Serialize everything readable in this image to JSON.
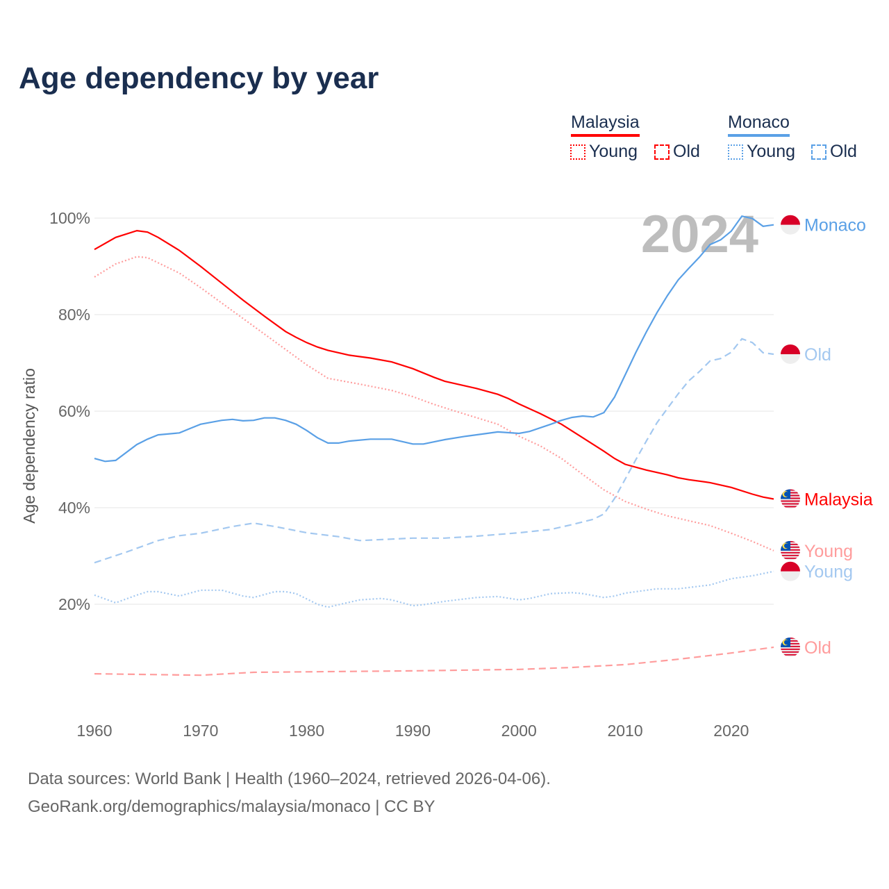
{
  "title": "Age dependency by year",
  "legend": {
    "groups": [
      {
        "name": "Malaysia",
        "color": "#ff0000",
        "items": [
          "Young",
          "Old"
        ]
      },
      {
        "name": "Monaco",
        "color": "#5aa0e6",
        "items": [
          "Young",
          "Old"
        ]
      }
    ]
  },
  "year_label": "2024",
  "sources": {
    "line1": "Data sources: World Bank | Health (1960–2024, retrieved 2026-04-06).",
    "line2": "GeoRank.org/demographics/malaysia/monaco | CC BY"
  },
  "chart_data": {
    "type": "line",
    "title": "Age dependency by year",
    "xlabel": "",
    "ylabel": "Age dependency ratio",
    "xlim": [
      1960,
      2024
    ],
    "ylim": [
      0,
      100
    ],
    "xticks": [
      "1960",
      "1970",
      "1980",
      "1990",
      "2000",
      "2010",
      "2020"
    ],
    "yticks": [
      "20%",
      "40%",
      "60%",
      "80%",
      "100%"
    ],
    "grid": true,
    "legend_position": "top-right",
    "series": [
      {
        "name": "Malaysia",
        "label": "Malaysia",
        "country": "malaysia",
        "style": "solid",
        "color": "#ff0000",
        "points": [
          [
            1960,
            93.5
          ],
          [
            1962,
            96
          ],
          [
            1964,
            97.4
          ],
          [
            1965,
            97.1
          ],
          [
            1966,
            96
          ],
          [
            1968,
            93.3
          ],
          [
            1970,
            90
          ],
          [
            1972,
            86.5
          ],
          [
            1974,
            83
          ],
          [
            1976,
            79.7
          ],
          [
            1978,
            76.5
          ],
          [
            1979,
            75.3
          ],
          [
            1980,
            74.2
          ],
          [
            1981,
            73.3
          ],
          [
            1982,
            72.6
          ],
          [
            1984,
            71.6
          ],
          [
            1986,
            71
          ],
          [
            1988,
            70.2
          ],
          [
            1990,
            68.8
          ],
          [
            1992,
            67
          ],
          [
            1993,
            66.2
          ],
          [
            1996,
            64.7
          ],
          [
            1998,
            63.5
          ],
          [
            1999,
            62.6
          ],
          [
            2000,
            61.5
          ],
          [
            2002,
            59.5
          ],
          [
            2004,
            57.3
          ],
          [
            2006,
            54.5
          ],
          [
            2008,
            51.7
          ],
          [
            2009,
            50.2
          ],
          [
            2010,
            49
          ],
          [
            2012,
            47.8
          ],
          [
            2014,
            46.8
          ],
          [
            2015,
            46.2
          ],
          [
            2016,
            45.8
          ],
          [
            2018,
            45.2
          ],
          [
            2020,
            44.2
          ],
          [
            2022,
            42.8
          ],
          [
            2023,
            42.2
          ],
          [
            2024,
            41.8
          ]
        ]
      },
      {
        "name": "Malaysia Young",
        "label": "Young",
        "country": "malaysia",
        "style": "dotted",
        "color": "#ff9c9c",
        "points": [
          [
            1960,
            87.8
          ],
          [
            1962,
            90.5
          ],
          [
            1964,
            92
          ],
          [
            1965,
            91.8
          ],
          [
            1968,
            88.6
          ],
          [
            1970,
            85.6
          ],
          [
            1975,
            77.6
          ],
          [
            1980,
            69.6
          ],
          [
            1982,
            66.8
          ],
          [
            1985,
            65.6
          ],
          [
            1988,
            64.3
          ],
          [
            1990,
            63
          ],
          [
            1992,
            61.4
          ],
          [
            1994,
            60
          ],
          [
            1998,
            57.3
          ],
          [
            2000,
            54.8
          ],
          [
            2002,
            52.8
          ],
          [
            2004,
            50.2
          ],
          [
            2006,
            46.9
          ],
          [
            2008,
            43.7
          ],
          [
            2010,
            41.3
          ],
          [
            2012,
            39.7
          ],
          [
            2014,
            38.3
          ],
          [
            2016,
            37.3
          ],
          [
            2018,
            36.3
          ],
          [
            2020,
            34.7
          ],
          [
            2022,
            33
          ],
          [
            2024,
            31.1
          ]
        ]
      },
      {
        "name": "Malaysia Old",
        "label": "Old",
        "country": "malaysia",
        "style": "dashed",
        "color": "#ff9c9c",
        "points": [
          [
            1960,
            5.6
          ],
          [
            1970,
            5.3
          ],
          [
            1975,
            5.9
          ],
          [
            1990,
            6.2
          ],
          [
            2000,
            6.5
          ],
          [
            2005,
            6.9
          ],
          [
            2010,
            7.5
          ],
          [
            2015,
            8.6
          ],
          [
            2020,
            9.9
          ],
          [
            2024,
            11.1
          ]
        ]
      },
      {
        "name": "Monaco",
        "label": "Monaco",
        "country": "monaco",
        "style": "solid",
        "color": "#5aa0e6",
        "points": [
          [
            1960,
            50.2
          ],
          [
            1961,
            49.6
          ],
          [
            1962,
            49.8
          ],
          [
            1964,
            53.1
          ],
          [
            1965,
            54.2
          ],
          [
            1966,
            55.1
          ],
          [
            1968,
            55.5
          ],
          [
            1969,
            56.4
          ],
          [
            1970,
            57.3
          ],
          [
            1972,
            58.1
          ],
          [
            1973,
            58.3
          ],
          [
            1974,
            58
          ],
          [
            1975,
            58.1
          ],
          [
            1976,
            58.6
          ],
          [
            1977,
            58.6
          ],
          [
            1978,
            58.1
          ],
          [
            1979,
            57.3
          ],
          [
            1980,
            56
          ],
          [
            1981,
            54.5
          ],
          [
            1982,
            53.4
          ],
          [
            1983,
            53.4
          ],
          [
            1984,
            53.8
          ],
          [
            1986,
            54.2
          ],
          [
            1988,
            54.2
          ],
          [
            1990,
            53.2
          ],
          [
            1991,
            53.2
          ],
          [
            1993,
            54.1
          ],
          [
            1995,
            54.8
          ],
          [
            1997,
            55.4
          ],
          [
            1998,
            55.7
          ],
          [
            2000,
            55.4
          ],
          [
            2001,
            55.8
          ],
          [
            2003,
            57.3
          ],
          [
            2004,
            58.1
          ],
          [
            2005,
            58.7
          ],
          [
            2006,
            59
          ],
          [
            2007,
            58.8
          ],
          [
            2008,
            59.7
          ],
          [
            2009,
            62.9
          ],
          [
            2010,
            67.5
          ],
          [
            2011,
            72.1
          ],
          [
            2012,
            76.4
          ],
          [
            2013,
            80.4
          ],
          [
            2014,
            84
          ],
          [
            2015,
            87.2
          ],
          [
            2016,
            89.6
          ],
          [
            2017,
            91.9
          ],
          [
            2018,
            94.5
          ],
          [
            2019,
            95.5
          ],
          [
            2020,
            97.3
          ],
          [
            2021,
            100.4
          ],
          [
            2022,
            99.9
          ],
          [
            2023,
            98.3
          ],
          [
            2024,
            98.6
          ]
        ]
      },
      {
        "name": "Monaco Old",
        "label": "Old",
        "country": "monaco",
        "style": "dashed",
        "color": "#a3c8f0",
        "points": [
          [
            1960,
            28.6
          ],
          [
            1963,
            30.8
          ],
          [
            1966,
            33.2
          ],
          [
            1968,
            34.2
          ],
          [
            1970,
            34.7
          ],
          [
            1973,
            36.1
          ],
          [
            1975,
            36.8
          ],
          [
            1977,
            36.1
          ],
          [
            1980,
            34.8
          ],
          [
            1983,
            34
          ],
          [
            1985,
            33.2
          ],
          [
            1988,
            33.5
          ],
          [
            1990,
            33.7
          ],
          [
            1993,
            33.7
          ],
          [
            1996,
            34.1
          ],
          [
            2000,
            34.8
          ],
          [
            2003,
            35.5
          ],
          [
            2005,
            36.5
          ],
          [
            2007,
            37.6
          ],
          [
            2008,
            38.7
          ],
          [
            2009,
            41.9
          ],
          [
            2010,
            45.9
          ],
          [
            2011,
            49.9
          ],
          [
            2012,
            53.8
          ],
          [
            2013,
            57.6
          ],
          [
            2014,
            60.6
          ],
          [
            2015,
            63.6
          ],
          [
            2016,
            66.3
          ],
          [
            2017,
            68.2
          ],
          [
            2018,
            70.4
          ],
          [
            2019,
            70.9
          ],
          [
            2020,
            72.2
          ],
          [
            2021,
            75
          ],
          [
            2022,
            74.2
          ],
          [
            2023,
            72.1
          ],
          [
            2024,
            71.8
          ]
        ]
      },
      {
        "name": "Monaco Young",
        "label": "Young",
        "country": "monaco",
        "style": "dotted",
        "color": "#a3c8f0",
        "points": [
          [
            1960,
            21.9
          ],
          [
            1962,
            20.3
          ],
          [
            1964,
            21.9
          ],
          [
            1965,
            22.6
          ],
          [
            1966,
            22.6
          ],
          [
            1968,
            21.7
          ],
          [
            1970,
            22.9
          ],
          [
            1972,
            22.9
          ],
          [
            1974,
            21.7
          ],
          [
            1975,
            21.4
          ],
          [
            1977,
            22.6
          ],
          [
            1978,
            22.6
          ],
          [
            1979,
            22.2
          ],
          [
            1981,
            20
          ],
          [
            1982,
            19.4
          ],
          [
            1985,
            20.9
          ],
          [
            1987,
            21.2
          ],
          [
            1988,
            20.9
          ],
          [
            1990,
            19.7
          ],
          [
            1991,
            19.9
          ],
          [
            1993,
            20.6
          ],
          [
            1996,
            21.4
          ],
          [
            1998,
            21.6
          ],
          [
            2000,
            20.9
          ],
          [
            2001,
            21.2
          ],
          [
            2003,
            22.2
          ],
          [
            2005,
            22.4
          ],
          [
            2006,
            22.2
          ],
          [
            2008,
            21.4
          ],
          [
            2009,
            21.7
          ],
          [
            2010,
            22.3
          ],
          [
            2013,
            23.2
          ],
          [
            2015,
            23.2
          ],
          [
            2018,
            24
          ],
          [
            2020,
            25.3
          ],
          [
            2022,
            25.9
          ],
          [
            2024,
            26.8
          ]
        ]
      }
    ]
  }
}
